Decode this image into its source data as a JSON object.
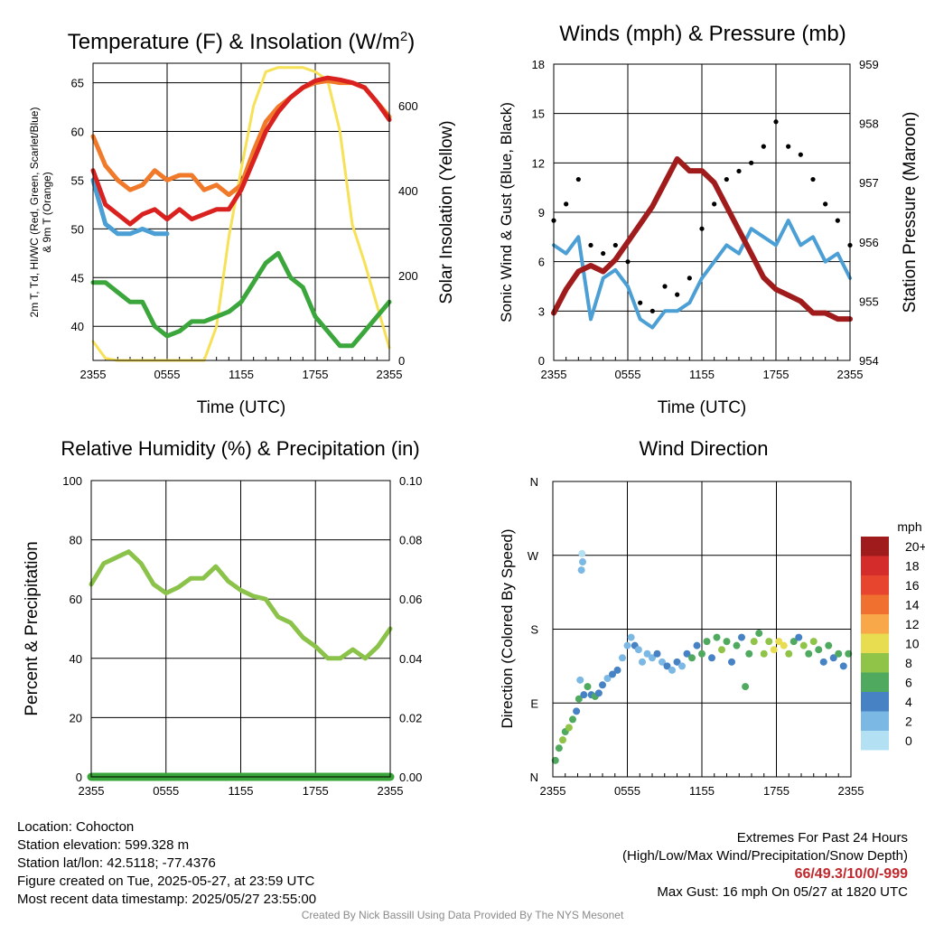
{
  "chart_data": [
    {
      "type": "line",
      "title": "Temperature (F) & Insolation (W/m²)",
      "title_main": "Temperature (F) & Insolation (W/m",
      "title_sup": "2",
      "title_close": ")",
      "xlabel": "Time (UTC)",
      "ylabel_lines": [
        "2m T, Td, HI/WC (Red, Green, Scarlet/Blue)",
        "& 9m T (Orange)"
      ],
      "ylabel_right": "Solar Insolation (Yellow)",
      "x_ticks": [
        "2355",
        "0555",
        "1155",
        "1755",
        "2355"
      ],
      "ylim": [
        36.5,
        67
      ],
      "y_ticks": [
        40,
        45,
        50,
        55,
        60,
        65
      ],
      "ylim_right": [
        0,
        700
      ],
      "y_ticks_right": [
        0,
        200,
        400,
        600
      ],
      "x_hours": [
        0,
        1,
        2,
        3,
        4,
        5,
        6,
        7,
        8,
        9,
        10,
        11,
        12,
        13,
        14,
        15,
        16,
        17,
        18,
        19,
        20,
        21,
        22,
        23,
        24
      ],
      "series": [
        {
          "color": "#f07a2a",
          "axis": "left",
          "values": [
            59.5,
            56.5,
            55.0,
            54.0,
            54.5,
            56.0,
            55.0,
            55.5,
            55.5,
            54.0,
            54.5,
            53.5,
            54.5,
            58.0,
            61.0,
            62.5,
            63.5,
            64.5,
            65.0,
            65.2,
            65.0,
            65.0,
            64.5,
            63.0,
            61.5
          ]
        },
        {
          "color": "#d92120",
          "axis": "left",
          "values": [
            56.0,
            52.5,
            51.5,
            50.5,
            51.5,
            52.0,
            51.0,
            52.0,
            51.0,
            51.5,
            52.0,
            52.0,
            54.0,
            57.0,
            60.0,
            62.0,
            63.5,
            64.5,
            65.2,
            65.5,
            65.3,
            65.0,
            64.5,
            63.0,
            61.2
          ]
        },
        {
          "color": "#4b9fd5",
          "axis": "left",
          "values": [
            55.0,
            50.5,
            49.5,
            49.5,
            50.0,
            49.5,
            49.5
          ]
        },
        {
          "color": "#3ba63b",
          "axis": "left",
          "values": [
            44.5,
            44.5,
            43.5,
            42.5,
            42.5,
            40.0,
            39.0,
            39.5,
            40.5,
            40.5,
            41.0,
            41.5,
            42.5,
            44.5,
            46.5,
            47.5,
            45.0,
            44.0,
            41.0,
            39.5,
            38.0,
            38.0,
            39.5,
            41.0,
            42.5
          ]
        },
        {
          "color": "#f7e157",
          "axis": "right",
          "values": [
            45,
            5,
            0,
            0,
            0,
            0,
            0,
            0,
            0,
            0,
            80,
            290,
            450,
            600,
            680,
            690,
            690,
            690,
            680,
            660,
            540,
            320,
            230,
            130,
            30
          ]
        }
      ]
    },
    {
      "type": "scatter",
      "title": "Winds (mph) & Pressure (mb)",
      "xlabel": "Time (UTC)",
      "ylabel": "Sonic Wind & Gust (Blue, Black)",
      "ylabel_right": "Station Pressure (Maroon)",
      "x_ticks": [
        "2355",
        "0555",
        "1155",
        "1755",
        "2355"
      ],
      "ylim": [
        0,
        18
      ],
      "y_ticks": [
        0,
        3,
        6,
        9,
        12,
        15,
        18
      ],
      "ylim_right": [
        954,
        959
      ],
      "y_ticks_right": [
        954,
        955,
        956,
        957,
        958,
        959
      ],
      "x_hours": [
        0,
        1,
        2,
        3,
        4,
        5,
        6,
        7,
        8,
        9,
        10,
        11,
        12,
        13,
        14,
        15,
        16,
        17,
        18,
        19,
        20,
        21,
        22,
        23,
        24
      ],
      "wind": [
        7.0,
        6.5,
        7.5,
        2.5,
        5.0,
        5.5,
        4.5,
        2.5,
        2.0,
        3.0,
        3.0,
        3.5,
        5.0,
        6.0,
        7.0,
        6.5,
        8.0,
        7.5,
        7.0,
        8.5,
        7.0,
        7.5,
        6.0,
        6.5,
        5.0
      ],
      "gust": [
        8.5,
        9.5,
        11.0,
        7.0,
        6.5,
        7.0,
        6.0,
        3.5,
        3.0,
        4.5,
        4.0,
        5.0,
        8.0,
        9.5,
        11.0,
        11.5,
        12.0,
        13.0,
        14.5,
        13.0,
        12.5,
        11.0,
        9.5,
        8.5,
        7.0
      ],
      "pressure": [
        954.8,
        955.2,
        955.5,
        955.6,
        955.5,
        955.7,
        956.0,
        956.3,
        956.6,
        957.0,
        957.4,
        957.2,
        957.2,
        957.0,
        956.6,
        956.2,
        955.8,
        955.4,
        955.2,
        955.1,
        955.0,
        954.8,
        954.8,
        954.7,
        954.7
      ],
      "colors": {
        "wind": "#4b9fd5",
        "gust": "#000000",
        "pressure": "#a01c1c"
      }
    },
    {
      "type": "line",
      "title": "Relative Humidity (%) & Precipitation (in)",
      "ylabel": "Percent & Precipitation",
      "x_ticks": [
        "2355",
        "0555",
        "1155",
        "1755",
        "2355"
      ],
      "ylim": [
        0,
        100
      ],
      "y_ticks": [
        0,
        20,
        40,
        60,
        80,
        100
      ],
      "ylim_right": [
        0,
        0.1
      ],
      "y_ticks_right": [
        "0.00",
        "0.02",
        "0.04",
        "0.06",
        "0.08",
        "0.10"
      ],
      "x_hours": [
        0,
        1,
        2,
        3,
        4,
        5,
        6,
        7,
        8,
        9,
        10,
        11,
        12,
        13,
        14,
        15,
        16,
        17,
        18,
        19,
        20,
        21,
        22,
        23,
        24
      ],
      "series": [
        {
          "color": "#8bc34a",
          "axis": "left",
          "values": [
            65,
            72,
            74,
            76,
            72,
            65,
            62,
            64,
            67,
            67,
            71,
            66,
            63,
            61,
            60,
            54,
            52,
            47,
            44,
            40,
            40,
            43,
            40,
            44,
            50
          ]
        },
        {
          "color": "#3aa53a",
          "axis": "right",
          "values": [
            0,
            0,
            0,
            0,
            0,
            0,
            0,
            0,
            0,
            0,
            0,
            0,
            0,
            0,
            0,
            0,
            0,
            0,
            0,
            0,
            0,
            0,
            0,
            0,
            0
          ]
        }
      ]
    },
    {
      "type": "scatter",
      "title": "Wind Direction",
      "ylabel": "Direction (Colored By Speed)",
      "x_ticks": [
        "2355",
        "0555",
        "1155",
        "1755",
        "2355"
      ],
      "y_ticks": [
        "N",
        "E",
        "S",
        "W",
        "N"
      ],
      "ylim": [
        0,
        360
      ],
      "legend_title": "mph",
      "legend_labels": [
        "20+",
        "18",
        "16",
        "14",
        "12",
        "10",
        "8",
        "6",
        "4",
        "2",
        "0"
      ],
      "legend_colors": [
        "#a01c1c",
        "#d42b2b",
        "#e8452e",
        "#f07030",
        "#f8a848",
        "#e8dc50",
        "#8fc448",
        "#4faa60",
        "#4682c4",
        "#7cb8e4",
        "#b4e0f4"
      ],
      "points": [
        {
          "x": 0.2,
          "dir": 20,
          "speed": 6
        },
        {
          "x": 0.5,
          "dir": 35,
          "speed": 6
        },
        {
          "x": 0.8,
          "dir": 45,
          "speed": 8
        },
        {
          "x": 1.0,
          "dir": 55,
          "speed": 6
        },
        {
          "x": 1.3,
          "dir": 60,
          "speed": 8
        },
        {
          "x": 1.6,
          "dir": 70,
          "speed": 6
        },
        {
          "x": 1.9,
          "dir": 80,
          "speed": 4
        },
        {
          "x": 2.1,
          "dir": 95,
          "speed": 6
        },
        {
          "x": 2.2,
          "dir": 118,
          "speed": 2
        },
        {
          "x": 2.3,
          "dir": 252,
          "speed": 2
        },
        {
          "x": 2.35,
          "dir": 272,
          "speed": 0
        },
        {
          "x": 2.4,
          "dir": 262,
          "speed": 2
        },
        {
          "x": 2.5,
          "dir": 100,
          "speed": 4
        },
        {
          "x": 2.8,
          "dir": 110,
          "speed": 6
        },
        {
          "x": 3.1,
          "dir": 100,
          "speed": 4
        },
        {
          "x": 3.4,
          "dir": 98,
          "speed": 6
        },
        {
          "x": 3.7,
          "dir": 102,
          "speed": 4
        },
        {
          "x": 4.0,
          "dir": 112,
          "speed": 4
        },
        {
          "x": 4.4,
          "dir": 120,
          "speed": 2
        },
        {
          "x": 4.8,
          "dir": 125,
          "speed": 4
        },
        {
          "x": 5.2,
          "dir": 130,
          "speed": 4
        },
        {
          "x": 5.6,
          "dir": 145,
          "speed": 2
        },
        {
          "x": 6.0,
          "dir": 160,
          "speed": 2
        },
        {
          "x": 6.3,
          "dir": 170,
          "speed": 2
        },
        {
          "x": 6.6,
          "dir": 160,
          "speed": 4
        },
        {
          "x": 6.9,
          "dir": 155,
          "speed": 2
        },
        {
          "x": 7.2,
          "dir": 140,
          "speed": 2
        },
        {
          "x": 7.6,
          "dir": 150,
          "speed": 2
        },
        {
          "x": 8.0,
          "dir": 145,
          "speed": 2
        },
        {
          "x": 8.4,
          "dir": 150,
          "speed": 4
        },
        {
          "x": 8.8,
          "dir": 140,
          "speed": 2
        },
        {
          "x": 9.2,
          "dir": 135,
          "speed": 4
        },
        {
          "x": 9.6,
          "dir": 130,
          "speed": 2
        },
        {
          "x": 10.0,
          "dir": 140,
          "speed": 4
        },
        {
          "x": 10.4,
          "dir": 135,
          "speed": 2
        },
        {
          "x": 10.8,
          "dir": 150,
          "speed": 4
        },
        {
          "x": 11.2,
          "dir": 145,
          "speed": 6
        },
        {
          "x": 11.6,
          "dir": 160,
          "speed": 4
        },
        {
          "x": 12.0,
          "dir": 150,
          "speed": 6
        },
        {
          "x": 12.4,
          "dir": 165,
          "speed": 6
        },
        {
          "x": 12.8,
          "dir": 145,
          "speed": 4
        },
        {
          "x": 13.2,
          "dir": 170,
          "speed": 6
        },
        {
          "x": 13.6,
          "dir": 155,
          "speed": 8
        },
        {
          "x": 14.0,
          "dir": 165,
          "speed": 6
        },
        {
          "x": 14.4,
          "dir": 140,
          "speed": 4
        },
        {
          "x": 14.8,
          "dir": 160,
          "speed": 6
        },
        {
          "x": 15.2,
          "dir": 170,
          "speed": 4
        },
        {
          "x": 15.5,
          "dir": 110,
          "speed": 6
        },
        {
          "x": 15.8,
          "dir": 150,
          "speed": 6
        },
        {
          "x": 16.2,
          "dir": 165,
          "speed": 8
        },
        {
          "x": 16.6,
          "dir": 175,
          "speed": 6
        },
        {
          "x": 17.0,
          "dir": 150,
          "speed": 8
        },
        {
          "x": 17.4,
          "dir": 165,
          "speed": 8
        },
        {
          "x": 17.8,
          "dir": 155,
          "speed": 10
        },
        {
          "x": 18.2,
          "dir": 165,
          "speed": 10
        },
        {
          "x": 18.6,
          "dir": 160,
          "speed": 10
        },
        {
          "x": 19.0,
          "dir": 150,
          "speed": 8
        },
        {
          "x": 19.4,
          "dir": 165,
          "speed": 6
        },
        {
          "x": 19.8,
          "dir": 170,
          "speed": 4
        },
        {
          "x": 20.2,
          "dir": 160,
          "speed": 8
        },
        {
          "x": 20.6,
          "dir": 150,
          "speed": 6
        },
        {
          "x": 21.0,
          "dir": 165,
          "speed": 8
        },
        {
          "x": 21.4,
          "dir": 155,
          "speed": 6
        },
        {
          "x": 21.8,
          "dir": 140,
          "speed": 4
        },
        {
          "x": 22.2,
          "dir": 160,
          "speed": 6
        },
        {
          "x": 22.6,
          "dir": 145,
          "speed": 4
        },
        {
          "x": 23.0,
          "dir": 150,
          "speed": 6
        },
        {
          "x": 23.4,
          "dir": 135,
          "speed": 4
        },
        {
          "x": 23.8,
          "dir": 150,
          "speed": 6
        }
      ]
    }
  ],
  "info": {
    "location": "Location: Cohocton",
    "elevation": "Station elevation: 599.328 m",
    "latlon": "Station lat/lon: 42.5118; -77.4376",
    "created": "Figure created on Tue, 2025-05-27, at 23:59 UTC",
    "recent": "Most recent data timestamp: 2025/05/27 23:55:00"
  },
  "extremes": {
    "title": "Extremes For Past 24 Hours",
    "subtitle": "(High/Low/Max Wind/Precipitation/Snow Depth)",
    "values": "66/49.3/10/0/-999",
    "gust": "Max Gust: 16 mph On 05/27 at 1820 UTC"
  },
  "credit": "Created By Nick Bassill Using Data Provided By The NYS Mesonet"
}
